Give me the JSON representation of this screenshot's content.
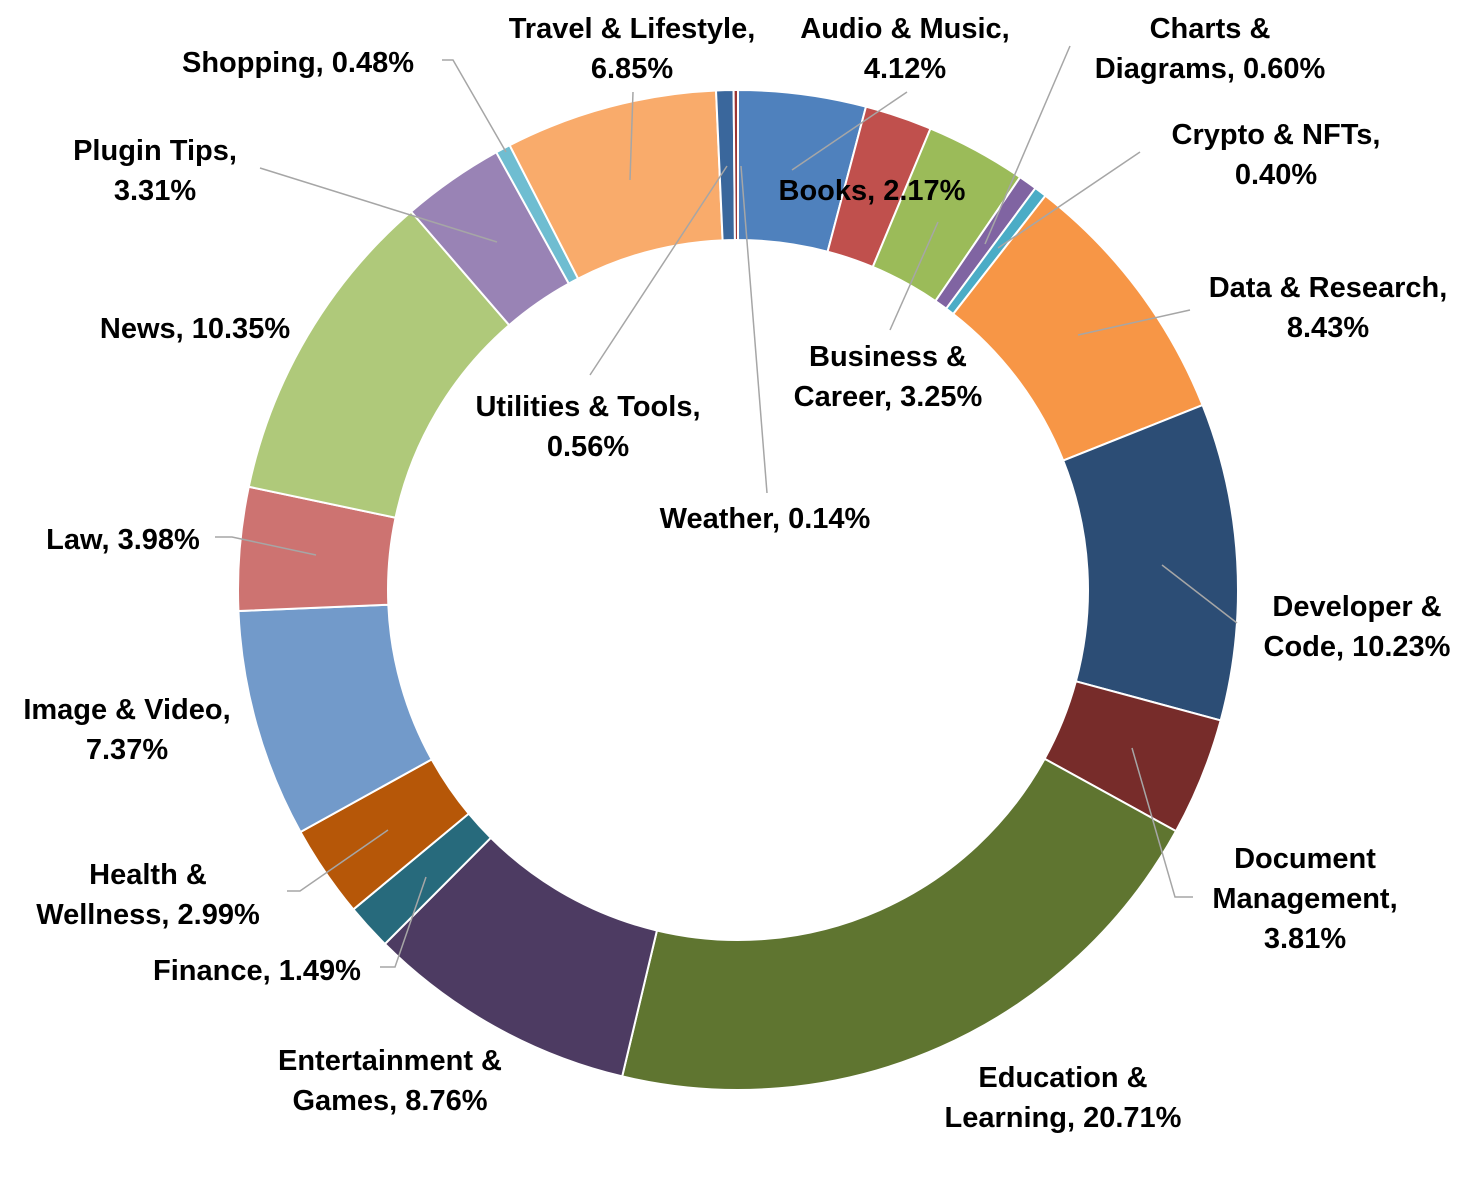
{
  "chart_data": {
    "type": "donut",
    "title": "",
    "start_angle_deg": 0,
    "direction": "clockwise",
    "slices": [
      {
        "name": "Audio & Music",
        "value": 4.12,
        "label_lines": [
          "Audio & Music,",
          "4.12%"
        ],
        "color": "#4f81bd"
      },
      {
        "name": "Books",
        "value": 2.17,
        "label_lines": [
          "Books, 2.17%"
        ],
        "color": "#c0504d"
      },
      {
        "name": "Business & Career",
        "value": 3.25,
        "label_lines": [
          "Business &",
          "Career, 3.25%"
        ],
        "color": "#9bbb59"
      },
      {
        "name": "Charts & Diagrams",
        "value": 0.6,
        "label_lines": [
          "Charts &",
          "Diagrams, 0.60%"
        ],
        "color": "#8064a2"
      },
      {
        "name": "Crypto & NFTs",
        "value": 0.4,
        "label_lines": [
          "Crypto & NFTs,",
          "0.40%"
        ],
        "color": "#4bacc6"
      },
      {
        "name": "Data & Research",
        "value": 8.43,
        "label_lines": [
          "Data & Research,",
          "8.43%"
        ],
        "color": "#f79646"
      },
      {
        "name": "Developer & Code",
        "value": 10.23,
        "label_lines": [
          "Developer &",
          "Code, 10.23%"
        ],
        "color": "#2c4d75"
      },
      {
        "name": "Document Management",
        "value": 3.81,
        "label_lines": [
          "Document",
          "Management,",
          "3.81%"
        ],
        "color": "#772c2a"
      },
      {
        "name": "Education & Learning",
        "value": 20.71,
        "label_lines": [
          "Education &",
          "Learning, 20.71%"
        ],
        "color": "#5f7530"
      },
      {
        "name": "Entertainment & Games",
        "value": 8.76,
        "label_lines": [
          "Entertainment &",
          "Games, 8.76%"
        ],
        "color": "#4d3b62"
      },
      {
        "name": "Finance",
        "value": 1.49,
        "label_lines": [
          "Finance, 1.49%"
        ],
        "color": "#276a7c"
      },
      {
        "name": "Health & Wellness",
        "value": 2.99,
        "label_lines": [
          "Health &",
          "Wellness, 2.99%"
        ],
        "color": "#b65708"
      },
      {
        "name": "Image & Video",
        "value": 7.37,
        "label_lines": [
          "Image & Video,",
          "7.37%"
        ],
        "color": "#729aca"
      },
      {
        "name": "Law",
        "value": 3.98,
        "label_lines": [
          "Law, 3.98%"
        ],
        "color": "#cd7371"
      },
      {
        "name": "News",
        "value": 10.35,
        "label_lines": [
          "News, 10.35%"
        ],
        "color": "#afc97a"
      },
      {
        "name": "Plugin Tips",
        "value": 3.31,
        "label_lines": [
          "Plugin Tips,",
          "3.31%"
        ],
        "color": "#9983b5"
      },
      {
        "name": "Shopping",
        "value": 0.48,
        "label_lines": [
          "Shopping, 0.48%"
        ],
        "color": "#6fbdd1"
      },
      {
        "name": "Travel & Lifestyle",
        "value": 6.85,
        "label_lines": [
          "Travel & Lifestyle,",
          "6.85%"
        ],
        "color": "#f9ab6b"
      },
      {
        "name": "Utilities & Tools",
        "value": 0.56,
        "label_lines": [
          "Utilities & Tools,",
          "0.56%"
        ],
        "color": "#3a679c"
      },
      {
        "name": "Weather",
        "value": 0.14,
        "label_lines": [
          "Weather, 0.14%"
        ],
        "color": "#9c3634"
      }
    ]
  }
}
